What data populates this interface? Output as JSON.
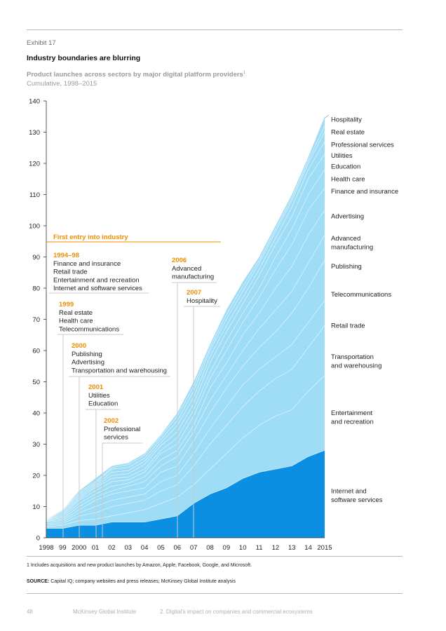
{
  "exhibit_label": "Exhibit 17",
  "title": "Industry boundaries are blurring",
  "subtitle": "Product launches across sectors by major digital platform providers",
  "subtitle_footnote_mark": "1",
  "subtitle_line2": "Cumulative, 1998–2015",
  "footnote": "1  Includes acquisitions and new product launches by Amazon, Apple, Facebook, Google, and Microsoft.",
  "source_label": "SOURCE:",
  "source_text": " Capital IQ; company websites and press releases; McKinsey Global Institute analysis",
  "footer": {
    "page_number": "48",
    "publisher": "McKinsey Global Institute",
    "section": "2. Digital's impact on companies and commercial ecosystems"
  },
  "colors": {
    "bottom_series": "#0a8fe2",
    "other_series": "#9fdcf6",
    "band_lines": "#ffffff",
    "annotation_year": "#f08c00",
    "leader_lines": "#c8c8c8",
    "header_line": "#f08c00"
  },
  "chart_data": {
    "type": "area",
    "stacked": true,
    "x": [
      "1998",
      "99",
      "2000",
      "01",
      "02",
      "03",
      "04",
      "05",
      "06",
      "07",
      "08",
      "09",
      "10",
      "11",
      "12",
      "13",
      "14",
      "2015"
    ],
    "ylim": [
      0,
      140
    ],
    "yticks": [
      0,
      10,
      20,
      30,
      40,
      50,
      60,
      70,
      80,
      90,
      100,
      110,
      120,
      130,
      140
    ],
    "grid": false,
    "legend_placement": "right",
    "bottom_series": {
      "name": "Internet and software services",
      "values": [
        3,
        3,
        4,
        4,
        5,
        5,
        5,
        6,
        7,
        11,
        14,
        16,
        19,
        21,
        22,
        23,
        26,
        28
      ]
    },
    "totals": [
      6,
      9,
      15,
      19,
      23,
      24,
      27,
      33,
      40,
      50,
      62,
      73,
      82,
      90,
      100,
      110,
      122,
      135
    ],
    "band_boundaries": [
      [
        3,
        3,
        4,
        4,
        5,
        5,
        5,
        6,
        7,
        11,
        14,
        16,
        19,
        21,
        22,
        23,
        26,
        28
      ],
      [
        3.5,
        4,
        5.5,
        6,
        7,
        8,
        9,
        11,
        13,
        17,
        22,
        27,
        32,
        36,
        39,
        41,
        47,
        52
      ],
      [
        4,
        4.5,
        7,
        8,
        10,
        11,
        12,
        15,
        17,
        23,
        30,
        36,
        42,
        47,
        51,
        54,
        61,
        68
      ],
      [
        4.5,
        5,
        8,
        10,
        12,
        13,
        14,
        18,
        20,
        27,
        35,
        42,
        49,
        54,
        58,
        62,
        69,
        76
      ],
      [
        5,
        5.5,
        9,
        12,
        14,
        15,
        16,
        21,
        23,
        31,
        40,
        48,
        55,
        61,
        66,
        72,
        80,
        89
      ],
      [
        5.2,
        6,
        10,
        13,
        15,
        16.5,
        18,
        23,
        26,
        34,
        44,
        52,
        60,
        67,
        73,
        79,
        88,
        97
      ],
      [
        5.4,
        6.5,
        11,
        14,
        16.5,
        17.5,
        19.5,
        25,
        28,
        36,
        48,
        56,
        65,
        72,
        80,
        87,
        97,
        105
      ],
      [
        5.6,
        7,
        12,
        15,
        18,
        18.5,
        21,
        27,
        30,
        39,
        51,
        60,
        69,
        77,
        86,
        94,
        105,
        112
      ],
      [
        5.7,
        7.5,
        12.5,
        16,
        19,
        19.5,
        22,
        28,
        32,
        41,
        53,
        63,
        72,
        80,
        90,
        99,
        110,
        118
      ],
      [
        5.8,
        8,
        13,
        16.5,
        20,
        20.5,
        23.5,
        29.5,
        34,
        43,
        56,
        66,
        75,
        84,
        94,
        103,
        115,
        123
      ],
      [
        5.9,
        8.5,
        13.5,
        17,
        21,
        21.5,
        24.5,
        30.5,
        36,
        45,
        58,
        68,
        77,
        86,
        96,
        106,
        118,
        127
      ],
      [
        5.95,
        8.8,
        14,
        17.5,
        22,
        22.5,
        25.5,
        31.5,
        37.5,
        47,
        60,
        70,
        79,
        88,
        98,
        108,
        120,
        130
      ],
      [
        6,
        9,
        14.5,
        18,
        22.5,
        23.5,
        26.5,
        32.5,
        39,
        48.5,
        61,
        71.5,
        80.5,
        89,
        99,
        109,
        121,
        132
      ]
    ],
    "series_labels": [
      {
        "text": [
          "Hospitality"
        ],
        "y": 134
      },
      {
        "text": [
          "Real estate"
        ],
        "y": 130
      },
      {
        "text": [
          "Professional services"
        ],
        "y": 126
      },
      {
        "text": [
          "Utilities"
        ],
        "y": 122.5
      },
      {
        "text": [
          "Education"
        ],
        "y": 119
      },
      {
        "text": [
          "Health care"
        ],
        "y": 115
      },
      {
        "text": [
          "Finance and insurance"
        ],
        "y": 111
      },
      {
        "text": [
          "Advertising"
        ],
        "y": 103
      },
      {
        "text": [
          "Advanced",
          "manufacturing"
        ],
        "y": 96
      },
      {
        "text": [
          "Publishing"
        ],
        "y": 87
      },
      {
        "text": [
          "Telecommunications"
        ],
        "y": 78
      },
      {
        "text": [
          "Retail trade"
        ],
        "y": 68
      },
      {
        "text": [
          "Transportation",
          "and warehousing"
        ],
        "y": 58
      },
      {
        "text": [
          "Entertainment",
          "and recreation"
        ],
        "y": 40
      },
      {
        "text": [
          "Internet and",
          "software services"
        ],
        "y": 15
      }
    ],
    "annotation_header": "First entry into industry",
    "annotations": [
      {
        "year": "1994–98",
        "x_index": 0,
        "items": [
          "Finance and insurance",
          "Retail trade",
          "Entertainment and recreation",
          "Internet and software services"
        ]
      },
      {
        "year": "1999",
        "x_index": 1,
        "items": [
          "Real estate",
          "Health care",
          "Telecommunications"
        ]
      },
      {
        "year": "2000",
        "x_index": 2,
        "items": [
          "Publishing",
          "Advertising",
          "Transportation and warehousing"
        ]
      },
      {
        "year": "2001",
        "x_index": 3,
        "items": [
          "Utilities",
          "Education"
        ]
      },
      {
        "year": "2002",
        "x_index": 4,
        "items": [
          "Professional",
          "services"
        ]
      },
      {
        "year": "2006",
        "x_index": 8,
        "items": [
          "Advanced",
          "manufacturing"
        ]
      },
      {
        "year": "2007",
        "x_index": 9,
        "items": [
          "Hospitality"
        ]
      }
    ]
  }
}
